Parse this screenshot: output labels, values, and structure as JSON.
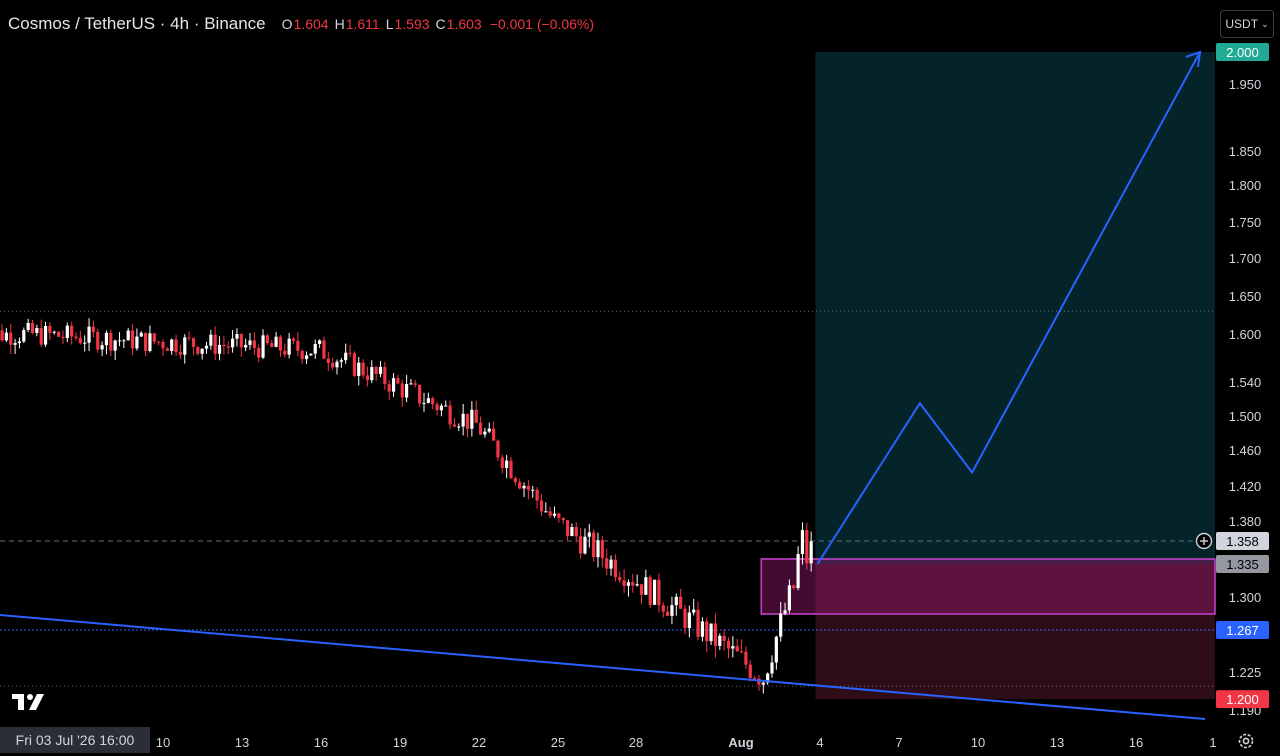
{
  "header": {
    "title": "Cosmos / TetherUS · 4h · Binance",
    "open_label": "O",
    "open": "1.604",
    "high_label": "H",
    "high": "1.611",
    "low_label": "L",
    "low": "1.593",
    "close_label": "C",
    "close": "1.603",
    "change": "−0.001 (−0.06%)"
  },
  "currency": "USDT",
  "crosshair_date": "Fri 03 Jul '26   16:00",
  "colors": {
    "up": "#ffffff",
    "down": "#f23645",
    "blue": "#2962ff",
    "teal_label": "#22ab94",
    "red_label": "#f23645",
    "magenta": "#c040c8"
  },
  "chart_data": {
    "type": "candlestick",
    "y_axis_ticks": [
      "1.950",
      "1.850",
      "1.800",
      "1.750",
      "1.700",
      "1.650",
      "1.600",
      "1.540",
      "1.500",
      "1.460",
      "1.420",
      "1.380",
      "1.300",
      "1.225",
      "1.190"
    ],
    "x_axis_ticks": [
      "10",
      "13",
      "16",
      "19",
      "22",
      "25",
      "28",
      "Aug",
      "4",
      "7",
      "10",
      "13",
      "16",
      "1"
    ],
    "price_labels": {
      "target": "2.000",
      "current": "1.358",
      "entry": "1.335",
      "support": "1.267",
      "stop": "1.200"
    },
    "key_points": [
      {
        "x": "Jul 3",
        "close": 1.6
      },
      {
        "x": "Jul 5",
        "close": 1.6
      },
      {
        "x": "Jul 10",
        "close": 1.59
      },
      {
        "x": "Jul 16",
        "close": 1.58
      },
      {
        "x": "Jul 22",
        "close": 1.49
      },
      {
        "x": "Jul 25",
        "close": 1.38
      },
      {
        "x": "Jul 28",
        "close": 1.32
      },
      {
        "x": "Aug 2",
        "close": 1.22
      },
      {
        "x": "Aug 3",
        "close": 1.3
      },
      {
        "x": "Aug 4",
        "close": 1.36
      }
    ],
    "projection": [
      {
        "x": "Aug 4",
        "y": 1.335
      },
      {
        "x": "Aug 8",
        "y": 1.515
      },
      {
        "x": "Aug 10",
        "y": 1.435
      },
      {
        "x": "Aug 16",
        "y": 2.0
      }
    ],
    "zones": {
      "target_zone": [
        1.335,
        2.0
      ],
      "stop_zone": [
        1.2,
        1.335
      ],
      "order_block": [
        1.283,
        1.34
      ]
    },
    "horizontal_lines": [
      1.63,
      1.358,
      1.267,
      1.212
    ]
  }
}
